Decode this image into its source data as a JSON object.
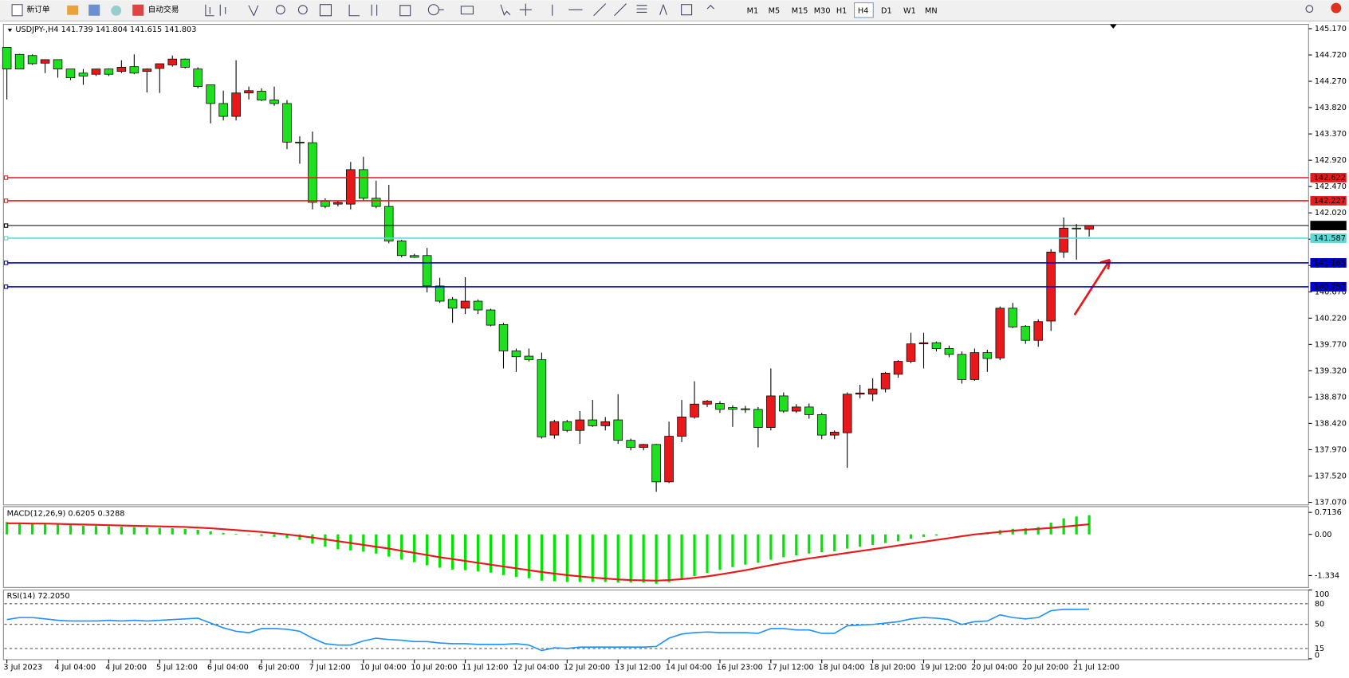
{
  "toolbar": {
    "buttons": [
      "新订单",
      "自动交易"
    ],
    "timeframes": [
      "M1",
      "M5",
      "M15",
      "M30",
      "H1",
      "H4",
      "D1",
      "W1",
      "MN"
    ],
    "active_timeframe": "H4"
  },
  "chart_data": [
    {
      "type": "candlestick",
      "symbol": "USDJPY-,H4",
      "up_color": "#e8191b",
      "down_color": "#1ee01e",
      "categories": [
        "3 Jul 2023",
        null,
        null,
        null,
        "4 Jul 04:00",
        null,
        null,
        null,
        "4 Jul 20:00",
        null,
        null,
        null,
        "5 Jul 12:00",
        null,
        null,
        null,
        "6 Jul 04:00",
        null,
        null,
        null,
        "6 Jul 20:00",
        null,
        null,
        null,
        "7 Jul 12:00",
        null,
        null,
        null,
        "10 Jul 04:00",
        null,
        null,
        null,
        "10 Jul 20:00",
        null,
        null,
        null,
        "11 Jul 12:00",
        null,
        null,
        null,
        "12 Jul 04:00",
        null,
        null,
        null,
        "12 Jul 20:00",
        null,
        null,
        null,
        "13 Jul 12:00",
        null,
        null,
        null,
        "14 Jul 04:00",
        null,
        null,
        null,
        "16 Jul 23:00",
        null,
        null,
        null,
        "17 Jul 12:00",
        null,
        null,
        null,
        "18 Jul 04:00",
        null,
        null,
        null,
        "18 Jul 20:00",
        null,
        null,
        null,
        "19 Jul 12:00",
        null,
        null,
        null,
        "20 Jul 04:00",
        null,
        null,
        null,
        "20 Jul 20:00",
        null,
        null,
        null,
        "21 Jul 12:00",
        null
      ],
      "ohlc": [
        [
          144.85,
          144.85,
          143.96,
          144.48
        ],
        [
          144.73,
          144.74,
          144.48,
          144.48
        ],
        [
          144.71,
          144.73,
          144.55,
          144.57
        ],
        [
          144.58,
          144.64,
          144.41,
          144.64
        ],
        [
          144.64,
          144.64,
          144.33,
          144.48
        ],
        [
          144.48,
          144.48,
          144.29,
          144.33
        ],
        [
          144.41,
          144.48,
          144.21,
          144.36
        ],
        [
          144.39,
          144.44,
          144.36,
          144.48
        ],
        [
          144.48,
          144.49,
          144.36,
          144.39
        ],
        [
          144.44,
          144.63,
          144.41,
          144.51
        ],
        [
          144.52,
          144.73,
          144.39,
          144.41
        ],
        [
          144.44,
          144.49,
          144.08,
          144.48
        ],
        [
          144.49,
          144.57,
          144.07,
          144.57
        ],
        [
          144.55,
          144.71,
          144.52,
          144.65
        ],
        [
          144.65,
          144.66,
          144.49,
          144.51
        ],
        [
          144.48,
          144.51,
          144.15,
          144.18
        ],
        [
          144.21,
          144.21,
          143.55,
          143.89
        ],
        [
          143.89,
          144.11,
          143.6,
          143.67
        ],
        [
          143.67,
          144.63,
          143.6,
          144.07
        ],
        [
          144.07,
          144.18,
          143.96,
          144.11
        ],
        [
          144.1,
          144.15,
          143.93,
          143.95
        ],
        [
          143.95,
          144.18,
          143.85,
          143.89
        ],
        [
          143.89,
          143.95,
          143.11,
          143.23
        ],
        [
          143.23,
          143.33,
          142.86,
          143.22
        ],
        [
          143.22,
          143.41,
          142.08,
          142.2
        ],
        [
          142.22,
          142.27,
          142.1,
          142.13
        ],
        [
          142.17,
          142.22,
          142.13,
          142.2
        ],
        [
          142.17,
          142.89,
          142.08,
          142.76
        ],
        [
          142.76,
          142.98,
          142.22,
          142.27
        ],
        [
          142.27,
          142.57,
          142.1,
          142.13
        ],
        [
          142.13,
          142.5,
          141.5,
          141.54
        ],
        [
          141.54,
          141.56,
          141.26,
          141.29
        ],
        [
          141.29,
          141.32,
          141.25,
          141.26
        ],
        [
          141.29,
          141.42,
          140.66,
          140.77
        ],
        [
          140.77,
          140.91,
          140.48,
          140.51
        ],
        [
          140.54,
          140.58,
          140.14,
          140.39
        ],
        [
          140.39,
          140.92,
          140.29,
          140.51
        ],
        [
          140.51,
          140.54,
          140.29,
          140.36
        ],
        [
          140.36,
          140.38,
          140.08,
          140.1
        ],
        [
          140.11,
          140.14,
          139.36,
          139.66
        ],
        [
          139.66,
          139.7,
          139.3,
          139.56
        ],
        [
          139.57,
          139.7,
          139.48,
          139.51
        ],
        [
          139.51,
          139.63,
          138.16,
          138.19
        ],
        [
          138.22,
          138.48,
          138.16,
          138.45
        ],
        [
          138.45,
          138.48,
          138.27,
          138.3
        ],
        [
          138.3,
          138.63,
          138.07,
          138.48
        ],
        [
          138.48,
          138.82,
          138.36,
          138.38
        ],
        [
          138.38,
          138.53,
          138.3,
          138.45
        ],
        [
          138.48,
          138.92,
          138.07,
          138.13
        ],
        [
          138.13,
          138.16,
          137.96,
          138.01
        ],
        [
          138.01,
          138.07,
          137.96,
          138.06
        ],
        [
          138.06,
          138.07,
          137.25,
          137.42
        ],
        [
          137.42,
          138.45,
          137.4,
          138.2
        ],
        [
          138.2,
          138.82,
          138.1,
          138.53
        ],
        [
          138.53,
          139.14,
          138.5,
          138.75
        ],
        [
          138.75,
          138.82,
          138.7,
          138.8
        ],
        [
          138.76,
          138.8,
          138.6,
          138.66
        ],
        [
          138.69,
          138.73,
          138.36,
          138.66
        ],
        [
          138.67,
          138.72,
          138.6,
          138.66
        ],
        [
          138.66,
          138.7,
          138.01,
          138.35
        ],
        [
          138.35,
          139.36,
          138.3,
          138.89
        ],
        [
          138.89,
          138.95,
          138.6,
          138.63
        ],
        [
          138.63,
          138.75,
          138.6,
          138.7
        ],
        [
          138.7,
          138.76,
          138.5,
          138.57
        ],
        [
          138.57,
          138.6,
          138.15,
          138.22
        ],
        [
          138.22,
          138.3,
          138.15,
          138.27
        ],
        [
          138.26,
          138.95,
          137.66,
          138.92
        ],
        [
          138.92,
          139.08,
          138.85,
          138.94
        ],
        [
          138.92,
          139.19,
          138.8,
          139.01
        ],
        [
          139.01,
          139.3,
          138.95,
          139.28
        ],
        [
          139.26,
          139.5,
          139.2,
          139.48
        ],
        [
          139.48,
          139.97,
          139.45,
          139.78
        ],
        [
          139.78,
          139.97,
          139.36,
          139.8
        ],
        [
          139.8,
          139.82,
          139.65,
          139.7
        ],
        [
          139.7,
          139.75,
          139.55,
          139.6
        ],
        [
          139.6,
          139.65,
          139.1,
          139.17
        ],
        [
          139.17,
          139.7,
          139.15,
          139.63
        ],
        [
          139.63,
          139.68,
          139.3,
          139.53
        ],
        [
          139.54,
          140.42,
          139.5,
          140.39
        ],
        [
          140.39,
          140.48,
          140.05,
          140.07
        ],
        [
          140.08,
          140.1,
          139.78,
          139.84
        ],
        [
          139.84,
          140.2,
          139.73,
          140.16
        ],
        [
          140.17,
          141.4,
          140.0,
          141.35
        ],
        [
          141.35,
          141.94,
          141.25,
          141.76
        ],
        [
          141.76,
          141.83,
          141.22,
          141.75
        ],
        [
          141.739,
          141.804,
          141.615,
          141.803
        ]
      ],
      "levels": [
        {
          "value": 142.622,
          "color": "#e8191b"
        },
        {
          "value": 142.227,
          "color": "#e8191b"
        },
        {
          "value": 141.803,
          "color": "#000000"
        },
        {
          "value": 141.587,
          "color": "#5fd7d7"
        },
        {
          "value": 141.165,
          "color": "#0000cd"
        },
        {
          "value": 140.757,
          "color": "#0000cd"
        }
      ],
      "ylim": [
        137.026,
        145.229
      ],
      "yticks": [
        {
          "value": 145.17,
          "label": "145.170"
        },
        {
          "value": 144.72,
          "label": "144.720"
        },
        {
          "value": 144.27,
          "label": "144.270"
        },
        {
          "value": 143.82,
          "label": "143.820"
        },
        {
          "value": 143.37,
          "label": "143.370"
        },
        {
          "value": 142.92,
          "label": "142.920"
        },
        {
          "value": 142.47,
          "label": "142.470"
        },
        {
          "value": 142.02,
          "label": "142.020"
        },
        {
          "value": 141.57,
          "label": "141.570"
        },
        {
          "value": 141.12,
          "label": "141.120"
        },
        {
          "value": 140.67,
          "label": "140.670"
        },
        {
          "value": 140.22,
          "label": "140.220"
        },
        {
          "value": 139.77,
          "label": "139.770"
        },
        {
          "value": 139.32,
          "label": "139.320"
        },
        {
          "value": 138.87,
          "label": "138.870"
        },
        {
          "value": 138.42,
          "label": "138.420"
        },
        {
          "value": 137.97,
          "label": "137.970"
        },
        {
          "value": 137.52,
          "label": "137.520"
        },
        {
          "value": 137.07,
          "label": "137.070"
        }
      ]
    },
    {
      "type": "macd",
      "name": "MACD(12,26,9)",
      "ylim": [
        -1.72,
        0.9
      ],
      "yticks": [
        0.7136,
        {
          "value": 0,
          "label": "0.00"
        },
        -1.334
      ],
      "series": [
        {
          "color": "#00e600",
          "values": [
            0.4,
            0.38,
            0.36,
            0.34,
            0.32,
            0.3,
            0.28,
            0.27,
            0.26,
            0.25,
            0.24,
            0.22,
            0.21,
            0.2,
            0.18,
            0.15,
            0.1,
            0.05,
            0.02,
            -0.02,
            -0.05,
            -0.08,
            -0.12,
            -0.18,
            -0.3,
            -0.4,
            -0.48,
            -0.52,
            -0.56,
            -0.62,
            -0.72,
            -0.82,
            -0.9,
            -1.0,
            -1.08,
            -1.14,
            -1.16,
            -1.2,
            -1.24,
            -1.32,
            -1.38,
            -1.42,
            -1.5,
            -1.52,
            -1.54,
            -1.54,
            -1.54,
            -1.54,
            -1.56,
            -1.56,
            -1.56,
            -1.6,
            -1.55,
            -1.45,
            -1.35,
            -1.25,
            -1.15,
            -1.06,
            -0.98,
            -0.92,
            -0.82,
            -0.74,
            -0.68,
            -0.62,
            -0.58,
            -0.55,
            -0.46,
            -0.4,
            -0.34,
            -0.28,
            -0.22,
            -0.14,
            -0.08,
            -0.04,
            -0.01,
            0.0,
            0.02,
            0.06,
            0.14,
            0.18,
            0.2,
            0.24,
            0.38,
            0.52,
            0.58,
            0.6205
          ]
        },
        {
          "color": "#e8191b",
          "values": [
            0.36,
            0.36,
            0.35,
            0.35,
            0.34,
            0.33,
            0.32,
            0.31,
            0.3,
            0.29,
            0.28,
            0.27,
            0.26,
            0.25,
            0.24,
            0.22,
            0.2,
            0.17,
            0.14,
            0.11,
            0.08,
            0.04,
            0.0,
            -0.05,
            -0.1,
            -0.16,
            -0.22,
            -0.28,
            -0.34,
            -0.4,
            -0.46,
            -0.53,
            -0.6,
            -0.67,
            -0.74,
            -0.8,
            -0.86,
            -0.92,
            -0.98,
            -1.04,
            -1.1,
            -1.16,
            -1.22,
            -1.27,
            -1.32,
            -1.36,
            -1.4,
            -1.43,
            -1.46,
            -1.48,
            -1.49,
            -1.5,
            -1.48,
            -1.45,
            -1.41,
            -1.36,
            -1.3,
            -1.23,
            -1.16,
            -1.08,
            -1.0,
            -0.92,
            -0.85,
            -0.78,
            -0.72,
            -0.66,
            -0.6,
            -0.54,
            -0.48,
            -0.42,
            -0.36,
            -0.3,
            -0.24,
            -0.18,
            -0.12,
            -0.06,
            0.0,
            0.04,
            0.08,
            0.12,
            0.15,
            0.18,
            0.21,
            0.25,
            0.29,
            0.3288
          ]
        }
      ]
    },
    {
      "type": "rsi",
      "name": "RSI(14)",
      "color": "#1e90ff",
      "current_label": "72.2050",
      "ylim": [
        0,
        100
      ],
      "yticks": [
        100,
        80,
        50,
        15,
        0
      ],
      "values": [
        57,
        60,
        60,
        58,
        56,
        55,
        55,
        55,
        56,
        55,
        56,
        55,
        56,
        57,
        58,
        59,
        52,
        45,
        40,
        38,
        44,
        44,
        43,
        40,
        30,
        22,
        20,
        20,
        26,
        30,
        28,
        27,
        25,
        25,
        23,
        22,
        22,
        21,
        21,
        21,
        22,
        20,
        12,
        16,
        15,
        17,
        17,
        17,
        17,
        17,
        17,
        18,
        30,
        36,
        38,
        39,
        38,
        38,
        38,
        37,
        44,
        44,
        42,
        42,
        37,
        37,
        48,
        49,
        50,
        52,
        54,
        58,
        60,
        59,
        57,
        50,
        54,
        55,
        64,
        60,
        58,
        60,
        70,
        72,
        72,
        72.205
      ]
    }
  ]
}
